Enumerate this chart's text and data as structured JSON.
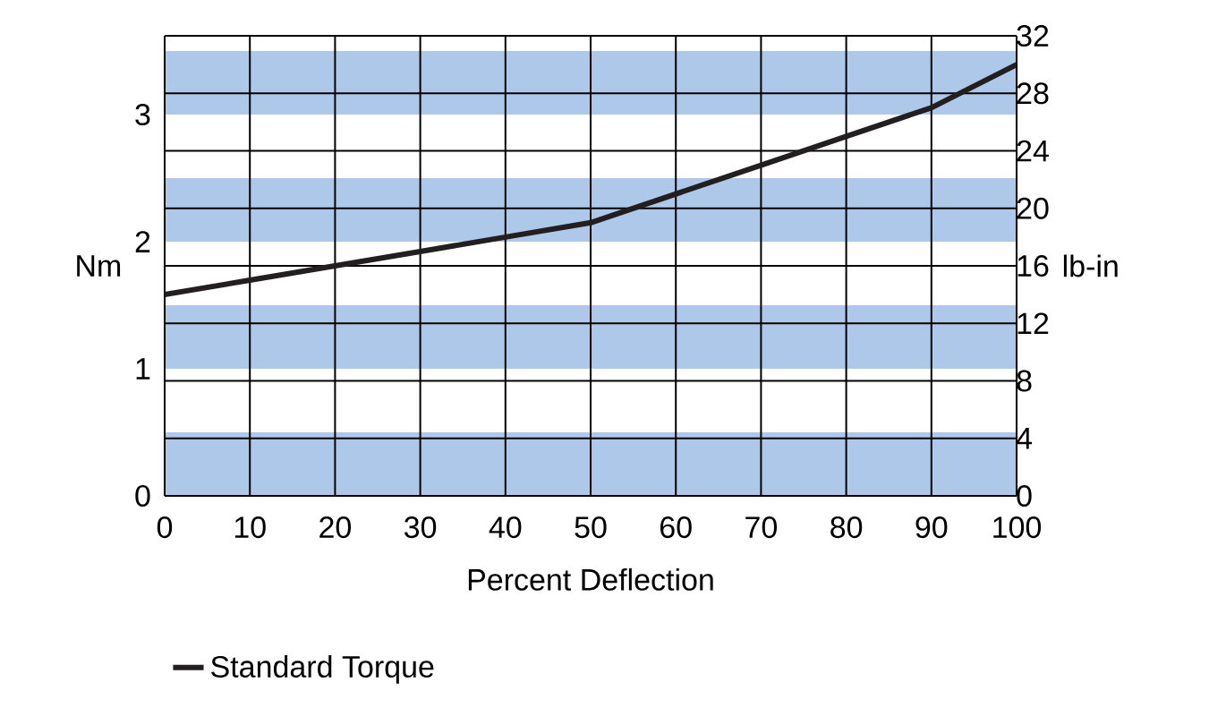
{
  "chart_data": {
    "type": "line",
    "xlabel": "Percent Deflection",
    "ylabel": "Nm",
    "y2label": "lb-in",
    "x": [
      0,
      10,
      20,
      30,
      40,
      50,
      60,
      70,
      80,
      90,
      100
    ],
    "series": [
      {
        "name": "Standard Torque",
        "color": "#231f20",
        "axis": "y2",
        "values": [
          14,
          15,
          16,
          17,
          18,
          19,
          21,
          23,
          25,
          27,
          30
        ]
      }
    ],
    "xlim": [
      0,
      100
    ],
    "xticks": [
      0,
      10,
      20,
      30,
      40,
      50,
      60,
      70,
      80,
      90,
      100
    ],
    "ylim": [
      0,
      3.62
    ],
    "yticks": [
      0,
      1,
      2,
      3
    ],
    "y2lim": [
      0,
      32
    ],
    "y2ticks": [
      0,
      4,
      8,
      12,
      16,
      20,
      24,
      28,
      32
    ],
    "bands": [
      {
        "axis": "y",
        "from": 0,
        "to": 0.5,
        "color": "#adc8e8"
      },
      {
        "axis": "y",
        "from": 1,
        "to": 1.5,
        "color": "#adc8e8"
      },
      {
        "axis": "y",
        "from": 2,
        "to": 2.5,
        "color": "#adc8e8"
      },
      {
        "axis": "y",
        "from": 3,
        "to": 3.5,
        "color": "#adc8e8"
      }
    ],
    "grid": true,
    "legend": "bottom left",
    "marker": "none",
    "line_style": "solid"
  }
}
